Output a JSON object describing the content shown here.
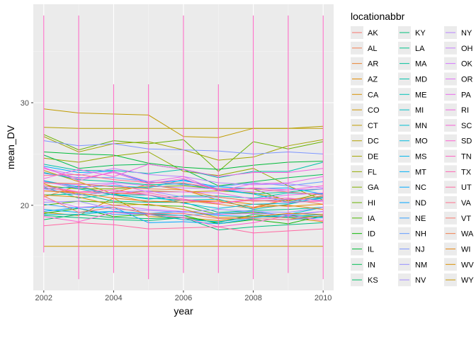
{
  "chart_data": {
    "type": "line",
    "title": "",
    "xlabel": "year",
    "ylabel": "mean_DV",
    "x_ticks": [
      2002,
      2004,
      2006,
      2008,
      2010
    ],
    "y_ticks": [
      20,
      30
    ],
    "xlim": [
      2001.7,
      2010.3
    ],
    "ylim": [
      11.7,
      39.6
    ],
    "grid": true,
    "legend": {
      "title": "locationabbr",
      "placement": "right",
      "columns": 3
    },
    "states": [
      "AK",
      "AL",
      "AR",
      "AZ",
      "CA",
      "CO",
      "CT",
      "DC",
      "DE",
      "FL",
      "GA",
      "HI",
      "IA",
      "ID",
      "IL",
      "IN",
      "KS",
      "KY",
      "LA",
      "MA",
      "MD",
      "ME",
      "MI",
      "MN",
      "MO",
      "MS",
      "MT",
      "NC",
      "ND",
      "NE",
      "NH",
      "NJ",
      "NM",
      "NV",
      "NY",
      "OH",
      "OK",
      "OR",
      "PA",
      "RI",
      "SC",
      "SD",
      "TN",
      "TX",
      "UT",
      "VA",
      "VT",
      "WA",
      "WI",
      "WV",
      "WY"
    ],
    "colors": [
      "#F8766D",
      "#F27D52",
      "#EA8331",
      "#E28A00",
      "#D89000",
      "#CD9600",
      "#C09B00",
      "#B3A000",
      "#A3A500",
      "#93AA00",
      "#7FAE00",
      "#68B200",
      "#4BB500",
      "#0CB702",
      "#00BA38",
      "#00BC52",
      "#00BE67",
      "#00BF7A",
      "#00C08B",
      "#00C19A",
      "#00C1AA",
      "#00C0B8",
      "#00BFC4",
      "#00BDD0",
      "#00BADE",
      "#00B6EB",
      "#00B0F6",
      "#00A9FF",
      "#00A5FF",
      "#35A2FF",
      "#619CFF",
      "#7D96FF",
      "#9590FF",
      "#A58AFF",
      "#B983FF",
      "#C77CFF",
      "#D575FE",
      "#E16EF7",
      "#EA68ED",
      "#F263E2",
      "#F85FD6",
      "#FD61D1",
      "#FF61C3",
      "#FF64B4",
      "#FF68A1",
      "#FC6F8E",
      "#F8766D",
      "#F07F4D",
      "#E68613",
      "#D99000",
      "#CB9800"
    ],
    "series": [
      {
        "name": "AK",
        "values": [
          null,
          null,
          null,
          null,
          null,
          null,
          null,
          null,
          null
        ]
      },
      {
        "name": "AL",
        "values": [
          21.4,
          21.3,
          21.2,
          21.0,
          20.5,
          20.4,
          19.8,
          20.6,
          20.1
        ]
      },
      {
        "name": "AR",
        "values": [
          20.8,
          21.9,
          21.0,
          20.3,
          20.5,
          20.1,
          19.7,
          20.6,
          20.8
        ]
      },
      {
        "name": "AZ",
        "values": [
          22.1,
          21.0,
          21.3,
          22.0,
          21.5,
          20.5,
          20.1,
          19.9,
          20.1
        ]
      },
      {
        "name": "CA",
        "values": [
          19.3,
          19.0,
          20.7,
          18.9,
          18.8,
          18.5,
          18.9,
          18.8,
          18.4
        ]
      },
      {
        "name": "CO",
        "values": [
          23.4,
          22.3,
          21.1,
          21.4,
          21.3,
          21.4,
          21.2,
          20.5,
          20.9
        ]
      },
      {
        "name": "CT",
        "values": [
          29.4,
          29.0,
          null,
          28.8,
          26.7,
          26.6,
          27.5,
          null,
          27.5
        ]
      },
      {
        "name": "DC",
        "values": [
          27.6,
          27.5,
          27.5,
          27.5,
          27.5,
          27.5,
          27.5,
          27.5,
          27.7
        ]
      },
      {
        "name": "DE",
        "values": [
          26.7,
          25.2,
          26.0,
          26.2,
          25.4,
          24.4,
          24.7,
          25.8,
          26.4
        ]
      },
      {
        "name": "FL",
        "values": [
          24.6,
          24.2,
          24.8,
          25.2,
          23.3,
          22.9,
          23.6,
          21.9,
          20.5
        ]
      },
      {
        "name": "GA",
        "values": [
          21.9,
          21.6,
          21.6,
          21.8,
          21.9,
          21.6,
          21.6,
          20.4,
          21.2
        ]
      },
      {
        "name": "HI",
        "values": [
          26.9,
          25.4,
          26.3,
          26.0,
          26.4,
          23.3,
          26.2,
          25.5,
          26.2
        ]
      },
      {
        "name": "IA",
        "values": [
          20.0,
          20.4,
          20.3,
          20.0,
          19.9,
          19.1,
          19.3,
          19.0,
          18.9
        ]
      },
      {
        "name": "ID",
        "values": [
          19.2,
          19.7,
          18.9,
          19.1,
          19.0,
          18.2,
          18.6,
          18.2,
          19.0
        ]
      },
      {
        "name": "IL",
        "values": [
          25.2,
          25.0,
          24.9,
          24.1,
          23.7,
          23.5,
          23.9,
          24.2,
          24.3
        ]
      },
      {
        "name": "IN",
        "values": [
          24.9,
          23.6,
          23.9,
          24.0,
          23.5,
          21.9,
          22.3,
          22.7,
          23.0
        ]
      },
      {
        "name": "KS",
        "values": [
          18.6,
          19.1,
          18.8,
          18.7,
          18.8,
          18.3,
          19.1,
          18.8,
          18.9
        ]
      },
      {
        "name": "KY",
        "values": [
          19.0,
          18.8,
          18.6,
          18.5,
          18.8,
          17.6,
          17.9,
          18.1,
          18.3
        ]
      },
      {
        "name": "LA",
        "values": [
          21.0,
          21.1,
          20.4,
          20.3,
          20.3,
          19.3,
          19.5,
          19.6,
          19.8
        ]
      },
      {
        "name": "MA",
        "values": [
          23.2,
          22.5,
          22.3,
          22.0,
          22.1,
          21.5,
          21.1,
          21.3,
          21.6
        ]
      },
      {
        "name": "MD",
        "values": [
          24.0,
          23.4,
          23.4,
          23.1,
          23.5,
          22.7,
          23.3,
          23.3,
          24.2
        ]
      },
      {
        "name": "ME",
        "values": [
          21.8,
          20.7,
          21.1,
          20.6,
          20.9,
          20.9,
          20.7,
          21.2,
          21.1
        ]
      },
      {
        "name": "MI",
        "values": [
          22.4,
          21.6,
          21.0,
          20.7,
          20.5,
          20.6,
          19.6,
          20.1,
          20.8
        ]
      },
      {
        "name": "MN",
        "values": [
          19.1,
          19.1,
          19.4,
          19.1,
          18.6,
          18.4,
          18.8,
          19.1,
          19.8
        ]
      },
      {
        "name": "MO",
        "values": [
          21.6,
          21.8,
          21.0,
          21.0,
          20.2,
          19.7,
          20.1,
          20.2,
          20.7
        ]
      },
      {
        "name": "MS",
        "values": [
          22.4,
          21.8,
          21.9,
          21.7,
          22.5,
          21.6,
          21.1,
          20.3,
          20.9
        ]
      },
      {
        "name": "MT",
        "values": [
          19.6,
          19.3,
          19.4,
          19.2,
          19.4,
          19.0,
          18.9,
          18.9,
          19.1
        ]
      },
      {
        "name": "NC",
        "values": [
          23.8,
          23.2,
          23.3,
          22.2,
          22.4,
          21.8,
          21.6,
          21.7,
          21.1
        ]
      },
      {
        "name": "ND",
        "values": [
          19.4,
          19.8,
          19.8,
          18.3,
          18.4,
          18.2,
          18.7,
          18.6,
          18.8
        ]
      },
      {
        "name": "NE",
        "values": [
          20.1,
          19.7,
          19.1,
          19.2,
          19.0,
          19.2,
          19.4,
          19.0,
          19.4
        ]
      },
      {
        "name": "NH",
        "values": [
          23.1,
          22.7,
          22.7,
          22.3,
          22.0,
          21.8,
          22.2,
          21.9,
          22.3
        ]
      },
      {
        "name": "NJ",
        "values": [
          26.3,
          25.8,
          26.0,
          25.5,
          25.4,
          25.3,
          25.0,
          25.2,
          25.0
        ]
      },
      {
        "name": "NM",
        "values": [
          20.3,
          20.4,
          19.6,
          19.5,
          19.3,
          19.6,
          19.4,
          19.3,
          19.8
        ]
      },
      {
        "name": "NV",
        "values": [
          21.6,
          21.0,
          21.3,
          21.4,
          20.8,
          20.8,
          20.4,
          20.6,
          20.5
        ]
      },
      {
        "name": "NY",
        "values": [
          23.6,
          22.9,
          23.6,
          23.0,
          22.8,
          22.2,
          22.0,
          22.1,
          21.7
        ]
      },
      {
        "name": "OH",
        "values": [
          22.2,
          22.0,
          22.2,
          21.9,
          21.7,
          21.6,
          21.3,
          21.5,
          21.6
        ]
      },
      {
        "name": "OK",
        "values": [
          20.6,
          19.8,
          20.0,
          19.6,
          19.4,
          19.1,
          19.2,
          19.1,
          19.4
        ]
      },
      {
        "name": "OR",
        "values": [
          22.3,
          21.7,
          22.1,
          21.3,
          21.3,
          21.2,
          20.6,
          21.0,
          21.2
        ]
      },
      {
        "name": "PA",
        "values": [
          23.7,
          22.4,
          23.3,
          22.3,
          22.8,
          21.4,
          22.1,
          22.2,
          22.8
        ]
      },
      {
        "name": "RI",
        "values": [
          22.6,
          23.5,
          22.8,
          24.0,
          23.5,
          22.8,
          23.2,
          23.2,
          23.6
        ]
      },
      {
        "name": "SC",
        "values": [
          23.6,
          22.6,
          23.2,
          22.1,
          22.6,
          21.4,
          21.7,
          21.5,
          21.9
        ]
      },
      {
        "name": "SD",
        "values": [
          18.9,
          18.4,
          19.3,
          19.1,
          18.8,
          17.9,
          18.3,
          19.0,
          18.5
        ]
      },
      {
        "name": "TN",
        "values": [
          21.9,
          21.3,
          21.5,
          21.0,
          20.5,
          20.2,
          20.6,
          20.7,
          20.4
        ]
      },
      {
        "name": "TX",
        "values": [
          21.7,
          21.3,
          21.2,
          21.2,
          20.6,
          20.2,
          20.5,
          20.3,
          20.4
        ]
      },
      {
        "name": "UT",
        "values": [
          18.0,
          18.3,
          18.1,
          17.7,
          17.8,
          17.9,
          17.3,
          17.5,
          17.7
        ]
      },
      {
        "name": "VA",
        "values": [
          22.9,
          23.0,
          22.5,
          22.2,
          22.2,
          21.6,
          21.6,
          21.3,
          21.0
        ]
      },
      {
        "name": "VT",
        "values": [
          20.9,
          19.3,
          19.8,
          19.2,
          19.2,
          18.7,
          18.7,
          18.6,
          19.0
        ]
      },
      {
        "name": "WA",
        "values": [
          22.2,
          22.1,
          21.8,
          21.6,
          21.5,
          20.8,
          20.4,
          20.5,
          20.9
        ]
      },
      {
        "name": "WI",
        "values": [
          21.4,
          21.2,
          20.7,
          20.4,
          20.3,
          20.4,
          19.8,
          20.0,
          19.6
        ]
      },
      {
        "name": "WV",
        "values": [
          21.0,
          20.8,
          20.0,
          20.1,
          19.6,
          18.8,
          18.9,
          19.2,
          19.1
        ]
      },
      {
        "name": "WY",
        "values": [
          16.0,
          16.0,
          16.0,
          16.0,
          16.0,
          16.0,
          16.0,
          16.0,
          16.0
        ]
      }
    ],
    "spikes": [
      {
        "x": 2002,
        "ymin": 15.4,
        "ymax": 38.5
      },
      {
        "x": 2003,
        "ymin": 12.8,
        "ymax": 38.5
      },
      {
        "x": 2004,
        "ymin": 13.4,
        "ymax": 31.8
      },
      {
        "x": 2005,
        "ymin": 12.8,
        "ymax": 31.8
      },
      {
        "x": 2006,
        "ymin": 13.4,
        "ymax": 38.5
      },
      {
        "x": 2007,
        "ymin": 13.4,
        "ymax": 31.8
      },
      {
        "x": 2008,
        "ymin": 12.8,
        "ymax": 38.5
      },
      {
        "x": 2009,
        "ymin": 13.4,
        "ymax": 38.5
      },
      {
        "x": 2010,
        "ymin": 12.8,
        "ymax": 38.5
      }
    ]
  }
}
